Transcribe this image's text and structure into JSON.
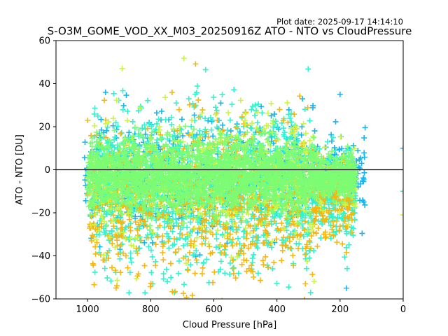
{
  "chart_data": {
    "type": "scatter",
    "title": "S-O3M_GOME_VOD_XX_M03_20250916Z ATO - NTO vs CloudPressure",
    "plot_date": "Plot date: 2025-09-17 14:14:10",
    "xlabel": "Cloud Pressure [hPa]",
    "ylabel": "ATO - NTO [DU]",
    "xlim": [
      1100,
      0
    ],
    "ylim": [
      -60,
      60
    ],
    "x_ticks": [
      1000,
      800,
      600,
      400,
      200,
      0
    ],
    "y_ticks": [
      -60,
      -40,
      -20,
      0,
      20,
      40,
      60
    ],
    "reference_line": {
      "y": 0,
      "color": "#000000"
    },
    "marker": "plus",
    "grid": false,
    "series": [
      {
        "name": "cyan-blue",
        "color": "#15b6f0",
        "x_range": [
          120,
          1010
        ],
        "y_center": -2,
        "y_spread": 22,
        "count": 700
      },
      {
        "name": "aquamarine",
        "color": "#2ef5cf",
        "x_range": [
          150,
          980
        ],
        "y_center": -10,
        "y_spread": 30,
        "count": 1600
      },
      {
        "name": "orange",
        "color": "#f8b60c",
        "x_range": [
          160,
          1000
        ],
        "y_center": -15,
        "y_spread": 30,
        "count": 900
      },
      {
        "name": "yellow-green",
        "color": "#ccf542",
        "x_range": [
          150,
          1000
        ],
        "y_center": -5,
        "y_spread": 25,
        "count": 600
      },
      {
        "name": "light-green",
        "color": "#7cfc73",
        "x_range": [
          150,
          1000
        ],
        "y_center": -3,
        "y_spread": 13,
        "count": 2600
      }
    ],
    "notable_points": [
      {
        "x": 890,
        "y": 47,
        "color": "#ccf542"
      },
      {
        "x": 0,
        "y": 10,
        "color": "#15b6f0"
      },
      {
        "x": 0,
        "y": -21,
        "color": "#ccf542"
      },
      {
        "x": 0,
        "y": -10,
        "color": "#2ef5cf"
      },
      {
        "x": 200,
        "y": 35,
        "color": "#15b6f0"
      },
      {
        "x": 180,
        "y": -55,
        "color": "#15b6f0"
      }
    ]
  }
}
